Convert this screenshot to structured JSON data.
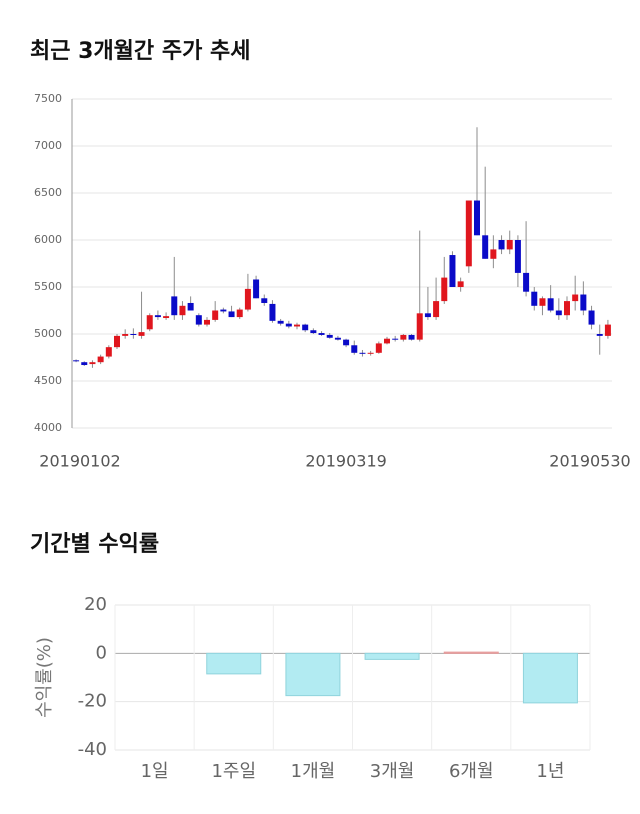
{
  "chart_data": [
    {
      "type": "candlestick",
      "title": "최근 3개월간 주가 추세",
      "categories": [
        "20190102",
        null,
        null,
        null,
        null,
        null,
        null,
        null,
        null,
        null,
        null,
        null,
        null,
        null,
        null,
        null,
        null,
        null,
        null,
        null,
        null,
        null,
        null,
        null,
        null,
        null,
        null,
        null,
        null,
        null,
        null,
        null,
        null,
        "20190319",
        null,
        null,
        null,
        null,
        null,
        null,
        null,
        null,
        null,
        null,
        null,
        null,
        null,
        null,
        null,
        null,
        null,
        null,
        null,
        null,
        null,
        null,
        null,
        null,
        null,
        null,
        null,
        null,
        null,
        null,
        null,
        "20190530"
      ],
      "open": [
        4720,
        4700,
        4680,
        4700,
        4760,
        4860,
        4980,
        5000,
        4980,
        5050,
        5200,
        5170,
        5400,
        5200,
        5330,
        5200,
        5100,
        5150,
        5260,
        5240,
        5180,
        5260,
        5580,
        5380,
        5320,
        5140,
        5110,
        5080,
        5100,
        5040,
        5010,
        4990,
        4960,
        4940,
        4880,
        4800,
        4790,
        4800,
        4900,
        4950,
        4940,
        4990,
        4940,
        5220,
        5180,
        5350,
        5840,
        5500,
        5720,
        6420,
        6050,
        5800,
        6000,
        5900,
        6000,
        5650,
        5450,
        5300,
        5380,
        5250,
        5200,
        5350,
        5420,
        5250,
        5000,
        4980
      ],
      "high": [
        4730,
        4710,
        4720,
        4780,
        4880,
        5000,
        5050,
        5060,
        5450,
        5220,
        5250,
        5230,
        5820,
        5350,
        5400,
        5220,
        5180,
        5350,
        5280,
        5300,
        5280,
        5640,
        5620,
        5420,
        5360,
        5160,
        5140,
        5120,
        5110,
        5060,
        5030,
        5010,
        4980,
        4950,
        4930,
        4830,
        4820,
        4920,
        4970,
        4980,
        5000,
        5000,
        6100,
        5500,
        5600,
        5820,
        5880,
        5600,
        6420,
        7200,
        6780,
        6050,
        6050,
        6100,
        6050,
        6200,
        5500,
        5400,
        5520,
        5380,
        5400,
        5620,
        5560,
        5300,
        5100,
        5150
      ],
      "low": [
        4700,
        4660,
        4640,
        4680,
        4740,
        4840,
        4950,
        4950,
        4950,
        5030,
        5150,
        5150,
        5150,
        5150,
        5250,
        5080,
        5080,
        5130,
        5220,
        5180,
        5160,
        5240,
        5380,
        5300,
        5120,
        5090,
        5060,
        5050,
        5020,
        5000,
        4980,
        4950,
        4930,
        4860,
        4780,
        4760,
        4770,
        4790,
        4890,
        4920,
        4920,
        4930,
        4920,
        5150,
        5150,
        5320,
        5500,
        5450,
        5650,
        6050,
        5800,
        5700,
        5850,
        5850,
        5500,
        5400,
        5250,
        5200,
        5230,
        5150,
        5150,
        5250,
        5200,
        5050,
        4780,
        4950
      ],
      "close": [
        4710,
        4670,
        4700,
        4760,
        4860,
        4980,
        5000,
        4990,
        5020,
        5200,
        5180,
        5190,
        5200,
        5300,
        5250,
        5100,
        5150,
        5250,
        5240,
        5180,
        5260,
        5480,
        5380,
        5330,
        5140,
        5110,
        5080,
        5100,
        5040,
        5010,
        4990,
        4960,
        4940,
        4880,
        4800,
        4790,
        4800,
        4900,
        4950,
        4940,
        4990,
        4940,
        5220,
        5180,
        5350,
        5600,
        5500,
        5560,
        6420,
        6050,
        5800,
        5900,
        5900,
        6000,
        5650,
        5450,
        5300,
        5380,
        5250,
        5200,
        5350,
        5420,
        5250,
        5100,
        4980,
        5100
      ],
      "up_color": "#e0161e",
      "down_color": "#0a0ac8",
      "wick_color": "#8c8c8c",
      "ylim": [
        4000,
        7500
      ],
      "yticks": [
        4000,
        4500,
        5000,
        5500,
        6000,
        6500,
        7000,
        7500
      ],
      "grid": true
    },
    {
      "type": "bar",
      "title": "기간별 수익률",
      "ylabel": "수익률(%)",
      "categories": [
        "1일",
        "1주일",
        "1개월",
        "3개월",
        "6개월",
        "1년"
      ],
      "values": [
        0,
        -8.5,
        -17.5,
        -2.5,
        0.5,
        -20.5
      ],
      "positive_color": "#f5b5b5",
      "negative_color": "#b2ebf2",
      "ylim": [
        -40,
        20
      ],
      "yticks": [
        20,
        0,
        -20,
        -40
      ],
      "grid": true
    }
  ]
}
